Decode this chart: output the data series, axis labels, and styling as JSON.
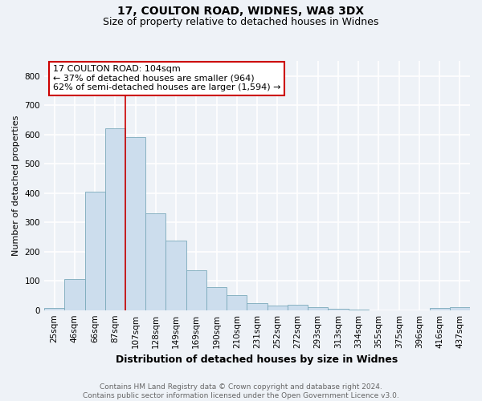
{
  "title1": "17, COULTON ROAD, WIDNES, WA8 3DX",
  "title2": "Size of property relative to detached houses in Widnes",
  "xlabel": "Distribution of detached houses by size in Widnes",
  "ylabel": "Number of detached properties",
  "categories": [
    "25sqm",
    "46sqm",
    "66sqm",
    "87sqm",
    "107sqm",
    "128sqm",
    "149sqm",
    "169sqm",
    "190sqm",
    "210sqm",
    "231sqm",
    "252sqm",
    "272sqm",
    "293sqm",
    "313sqm",
    "334sqm",
    "355sqm",
    "375sqm",
    "396sqm",
    "416sqm",
    "437sqm"
  ],
  "values": [
    7,
    107,
    404,
    620,
    590,
    330,
    237,
    135,
    78,
    50,
    23,
    15,
    18,
    9,
    5,
    2,
    0,
    0,
    0,
    8,
    10
  ],
  "bar_color": "#ccdded",
  "bar_edge_color": "#7aaabb",
  "red_line_x": 3.5,
  "annotation_text": "17 COULTON ROAD: 104sqm\n← 37% of detached houses are smaller (964)\n62% of semi-detached houses are larger (1,594) →",
  "annotation_box_color": "#ffffff",
  "annotation_box_edge": "#cc0000",
  "red_line_color": "#cc0000",
  "footer1": "Contains HM Land Registry data © Crown copyright and database right 2024.",
  "footer2": "Contains public sector information licensed under the Open Government Licence v3.0.",
  "ylim": [
    0,
    850
  ],
  "yticks": [
    0,
    100,
    200,
    300,
    400,
    500,
    600,
    700,
    800
  ],
  "background_color": "#eef2f7",
  "grid_color": "#ffffff",
  "title_fontsize": 10,
  "subtitle_fontsize": 9,
  "xlabel_fontsize": 9,
  "ylabel_fontsize": 8,
  "tick_fontsize": 7.5,
  "ann_fontsize": 8,
  "footer_fontsize": 6.5
}
